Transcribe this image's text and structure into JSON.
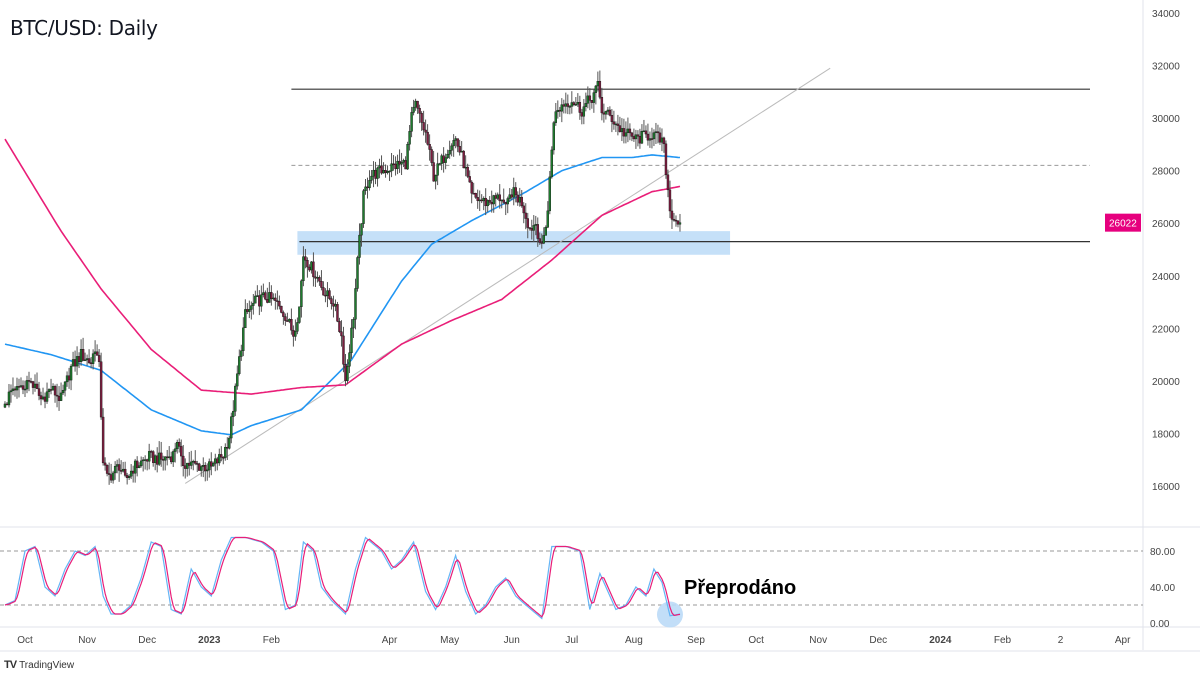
{
  "header": {
    "title": "BTC/USD: Daily"
  },
  "branding": {
    "logo_text": "TradingView"
  },
  "colors": {
    "candle_up": "#1e7b2e",
    "candle_down": "#7d1d3f",
    "ma_fast": "#2196f3",
    "ma_slow": "#e91e78",
    "zone": "#bbdaf7",
    "stoch_k": "#64b5f6",
    "stoch_d": "#e91e78",
    "price_tag": "#e6007e"
  },
  "chart_data": {
    "type": "candlestick",
    "symbol": "BTC/USD",
    "timeframe": "Daily",
    "x_units": "days since 2022-10-01",
    "price_ylim": [
      15000,
      34500
    ],
    "price_ticks": [
      34000,
      32000,
      30000,
      28000,
      26000,
      24000,
      22000,
      20000,
      18000,
      16000
    ],
    "last_price_label": "26022",
    "last_price": 26022,
    "x_ticks": [
      {
        "label": "Oct",
        "day": 0
      },
      {
        "label": "Nov",
        "day": 31
      },
      {
        "label": "Dec",
        "day": 61
      },
      {
        "label": "2023",
        "day": 92,
        "bold": true
      },
      {
        "label": "Feb",
        "day": 123
      },
      {
        "label": "Apr",
        "day": 182
      },
      {
        "label": "May",
        "day": 212
      },
      {
        "label": "Jun",
        "day": 243
      },
      {
        "label": "Jul",
        "day": 273
      },
      {
        "label": "Aug",
        "day": 304
      },
      {
        "label": "Sep",
        "day": 335
      },
      {
        "label": "Oct",
        "day": 365
      },
      {
        "label": "Nov",
        "day": 396
      },
      {
        "label": "Dec",
        "day": 426
      },
      {
        "label": "2024",
        "day": 457,
        "bold": true
      },
      {
        "label": "Feb",
        "day": 488
      },
      {
        "label": "2",
        "day": 517
      },
      {
        "label": "Apr",
        "day": 548
      }
    ],
    "close_path": [
      [
        -10,
        19000
      ],
      [
        -8,
        19400
      ],
      [
        -3,
        19700
      ],
      [
        3,
        20000
      ],
      [
        8,
        19300
      ],
      [
        13,
        19700
      ],
      [
        18,
        19300
      ],
      [
        23,
        20500
      ],
      [
        28,
        21000
      ],
      [
        33,
        20700
      ],
      [
        35,
        21300
      ],
      [
        37,
        20500
      ],
      [
        39,
        17000
      ],
      [
        41,
        16300
      ],
      [
        44,
        16500
      ],
      [
        47,
        16800
      ],
      [
        50,
        16200
      ],
      [
        54,
        16700
      ],
      [
        58,
        16900
      ],
      [
        62,
        17100
      ],
      [
        68,
        17000
      ],
      [
        74,
        17200
      ],
      [
        76,
        17800
      ],
      [
        78,
        16900
      ],
      [
        85,
        16800
      ],
      [
        93,
        16700
      ],
      [
        99,
        17200
      ],
      [
        102,
        17900
      ],
      [
        104,
        19000
      ],
      [
        107,
        20800
      ],
      [
        110,
        22500
      ],
      [
        115,
        23000
      ],
      [
        120,
        23200
      ],
      [
        125,
        23000
      ],
      [
        130,
        22500
      ],
      [
        134,
        21800
      ],
      [
        137,
        22800
      ],
      [
        139,
        24800
      ],
      [
        143,
        24300
      ],
      [
        147,
        23800
      ],
      [
        150,
        23300
      ],
      [
        154,
        23000
      ],
      [
        158,
        21700
      ],
      [
        160,
        20000
      ],
      [
        164,
        22500
      ],
      [
        166,
        24500
      ],
      [
        169,
        27000
      ],
      [
        172,
        27800
      ],
      [
        178,
        28000
      ],
      [
        185,
        28200
      ],
      [
        190,
        28300
      ],
      [
        193,
        30000
      ],
      [
        195,
        30500
      ],
      [
        198,
        29800
      ],
      [
        200,
        29400
      ],
      [
        204,
        27800
      ],
      [
        207,
        28200
      ],
      [
        212,
        29000
      ],
      [
        215,
        29200
      ],
      [
        219,
        28300
      ],
      [
        223,
        27000
      ],
      [
        230,
        26800
      ],
      [
        238,
        27000
      ],
      [
        240,
        26500
      ],
      [
        243,
        27200
      ],
      [
        248,
        26800
      ],
      [
        252,
        25800
      ],
      [
        255,
        26000
      ],
      [
        258,
        25000
      ],
      [
        261,
        26500
      ],
      [
        264,
        30000
      ],
      [
        268,
        30500
      ],
      [
        273,
        30700
      ],
      [
        278,
        30300
      ],
      [
        283,
        30800
      ],
      [
        286,
        31200
      ],
      [
        288,
        30300
      ],
      [
        293,
        30000
      ],
      [
        298,
        29500
      ],
      [
        305,
        29200
      ],
      [
        313,
        29400
      ],
      [
        318,
        29100
      ],
      [
        319,
        28800
      ],
      [
        322,
        26500
      ],
      [
        324,
        26200
      ],
      [
        327,
        26050
      ]
    ],
    "moving_averages": [
      {
        "name": "MA fast",
        "color": "#2196f3",
        "points": [
          [
            -10,
            21400
          ],
          [
            13,
            21000
          ],
          [
            38,
            20400
          ],
          [
            63,
            18900
          ],
          [
            88,
            18100
          ],
          [
            103,
            17950
          ],
          [
            113,
            18300
          ],
          [
            138,
            18900
          ],
          [
            163,
            20800
          ],
          [
            188,
            23800
          ],
          [
            203,
            25200
          ],
          [
            223,
            26100
          ],
          [
            248,
            27100
          ],
          [
            268,
            28000
          ],
          [
            288,
            28500
          ],
          [
            303,
            28500
          ],
          [
            313,
            28600
          ],
          [
            327,
            28500
          ]
        ]
      },
      {
        "name": "MA slow",
        "color": "#e91e78",
        "points": [
          [
            -10,
            29200
          ],
          [
            18,
            25700
          ],
          [
            38,
            23500
          ],
          [
            63,
            21200
          ],
          [
            88,
            19650
          ],
          [
            113,
            19500
          ],
          [
            138,
            19750
          ],
          [
            160,
            19850
          ],
          [
            188,
            21400
          ],
          [
            213,
            22300
          ],
          [
            238,
            23100
          ],
          [
            263,
            24600
          ],
          [
            288,
            26300
          ],
          [
            313,
            27200
          ],
          [
            327,
            27400
          ]
        ]
      }
    ],
    "levels": [
      {
        "name": "resistance",
        "price": 31100,
        "style": "solid",
        "from_day": 133
      },
      {
        "name": "midline",
        "price": 28200,
        "style": "dashed",
        "from_day": 133
      },
      {
        "name": "support",
        "price": 25300,
        "style": "solid",
        "from_day": 137
      }
    ],
    "support_zone": {
      "low": 24800,
      "high": 25700,
      "from_day": 136,
      "to_day": 352
    },
    "trendline": {
      "from": [
        80,
        16100
      ],
      "to": [
        402,
        31900
      ]
    },
    "stochastic": {
      "ylim": [
        0,
        100
      ],
      "ticks": [
        "80.00",
        "40.00",
        "0.00"
      ],
      "tick_values": [
        80,
        40,
        0
      ],
      "bands": [
        80,
        20
      ],
      "k_path": [
        [
          -10,
          20
        ],
        [
          -5,
          25
        ],
        [
          0,
          80
        ],
        [
          5,
          85
        ],
        [
          10,
          40
        ],
        [
          15,
          30
        ],
        [
          20,
          60
        ],
        [
          25,
          80
        ],
        [
          30,
          75
        ],
        [
          35,
          85
        ],
        [
          39,
          30
        ],
        [
          43,
          10
        ],
        [
          48,
          10
        ],
        [
          53,
          20
        ],
        [
          58,
          50
        ],
        [
          63,
          90
        ],
        [
          68,
          85
        ],
        [
          73,
          15
        ],
        [
          78,
          10
        ],
        [
          83,
          60
        ],
        [
          88,
          40
        ],
        [
          93,
          30
        ],
        [
          98,
          70
        ],
        [
          103,
          95
        ],
        [
          110,
          95
        ],
        [
          118,
          90
        ],
        [
          124,
          80
        ],
        [
          130,
          15
        ],
        [
          135,
          20
        ],
        [
          139,
          90
        ],
        [
          144,
          80
        ],
        [
          148,
          40
        ],
        [
          153,
          25
        ],
        [
          160,
          10
        ],
        [
          165,
          60
        ],
        [
          170,
          95
        ],
        [
          178,
          80
        ],
        [
          183,
          60
        ],
        [
          188,
          70
        ],
        [
          194,
          90
        ],
        [
          200,
          35
        ],
        [
          205,
          15
        ],
        [
          210,
          40
        ],
        [
          215,
          75
        ],
        [
          220,
          35
        ],
        [
          225,
          10
        ],
        [
          230,
          20
        ],
        [
          235,
          40
        ],
        [
          240,
          50
        ],
        [
          245,
          30
        ],
        [
          250,
          20
        ],
        [
          258,
          5
        ],
        [
          263,
          85
        ],
        [
          270,
          85
        ],
        [
          277,
          80
        ],
        [
          282,
          15
        ],
        [
          287,
          55
        ],
        [
          292,
          30
        ],
        [
          295,
          15
        ],
        [
          300,
          20
        ],
        [
          305,
          40
        ],
        [
          310,
          30
        ],
        [
          314,
          60
        ],
        [
          318,
          45
        ],
        [
          322,
          8
        ],
        [
          327,
          10
        ]
      ],
      "annotation": "Přeprodáno",
      "highlight_day": 325
    }
  }
}
